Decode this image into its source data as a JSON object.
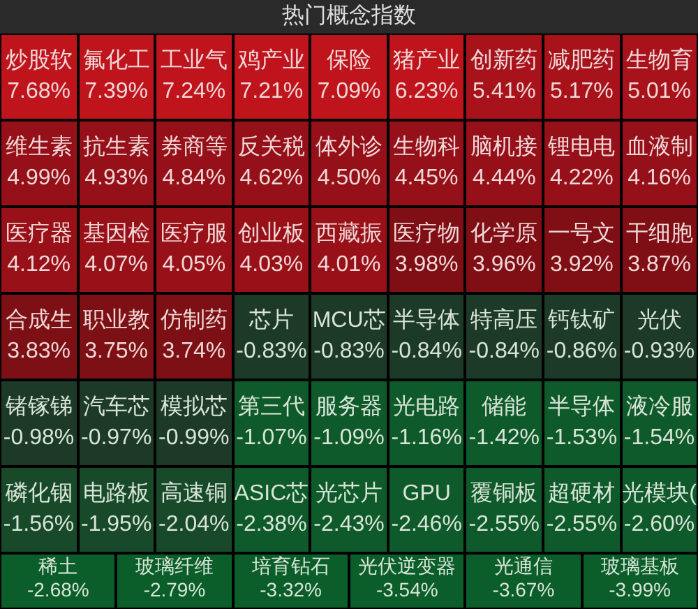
{
  "chart_data": {
    "type": "other",
    "title": "热门概念指数",
    "categories": [
      "炒股软",
      "氟化工",
      "工业气",
      "鸡产业",
      "保险",
      "猪产业",
      "创新药",
      "减肥药",
      "生物育",
      "维生素",
      "抗生素",
      "券商等",
      "反关税",
      "体外诊",
      "生物科",
      "脑机接",
      "锂电电",
      "血液制",
      "医疗器",
      "基因检",
      "医疗服",
      "创业板",
      "西藏振",
      "医疗物",
      "化学原",
      "一号文",
      "干细胞",
      "合成生",
      "职业教",
      "仿制药",
      "芯片",
      "MCU芯",
      "半导体",
      "特高压",
      "钙钛矿",
      "光伏",
      "锗镓锑",
      "汽车芯",
      "模拟芯",
      "第三代",
      "服务器",
      "光电路",
      "储能",
      "半导体",
      "液冷服",
      "磷化铟",
      "电路板",
      "高速铜",
      "ASIC芯",
      "光芯片",
      "GPU",
      "覆铜板",
      "超硬材",
      "光模块(",
      "稀土",
      "玻璃纤维",
      "培育钻石",
      "光伏逆变器",
      "光通信",
      "玻璃基板"
    ],
    "values": [
      7.68,
      7.39,
      7.24,
      7.21,
      7.09,
      6.23,
      5.41,
      5.17,
      5.01,
      4.99,
      4.93,
      4.84,
      4.62,
      4.5,
      4.45,
      4.44,
      4.22,
      4.16,
      4.12,
      4.07,
      4.05,
      4.03,
      4.01,
      3.98,
      3.96,
      3.92,
      3.87,
      3.83,
      3.75,
      3.74,
      -0.83,
      -0.83,
      -0.84,
      -0.84,
      -0.86,
      -0.93,
      -0.98,
      -0.97,
      -0.99,
      -1.07,
      -1.09,
      -1.16,
      -1.42,
      -1.53,
      -1.54,
      -1.56,
      -1.95,
      -2.04,
      -2.38,
      -2.43,
      -2.46,
      -2.55,
      -2.55,
      -2.6,
      -2.68,
      -2.79,
      -3.32,
      -3.54,
      -3.67,
      -3.99
    ],
    "value_labels": [
      "7.68%",
      "7.39%",
      "7.24%",
      "7.21%",
      "7.09%",
      "6.23%",
      "5.41%",
      "5.17%",
      "5.01%",
      "4.99%",
      "4.93%",
      "4.84%",
      "4.62%",
      "4.50%",
      "4.45%",
      "4.44%",
      "4.22%",
      "4.16%",
      "4.12%",
      "4.07%",
      "4.05%",
      "4.03%",
      "4.01%",
      "3.98%",
      "3.96%",
      "3.92%",
      "3.87%",
      "3.83%",
      "3.75%",
      "3.74%",
      "-0.83%",
      "-0.83%",
      "-0.84%",
      "-0.84%",
      "-0.86%",
      "-0.93%",
      "-0.98%",
      "-0.97%",
      "-0.99%",
      "-1.07%",
      "-1.09%",
      "-1.16%",
      "-1.42%",
      "-1.53%",
      "-1.54%",
      "-1.56%",
      "-1.95%",
      "-2.04%",
      "-2.38%",
      "-2.43%",
      "-2.46%",
      "-2.55%",
      "-2.55%",
      "-2.60%",
      "-2.68%",
      "-2.79%",
      "-3.32%",
      "-3.54%",
      "-3.67%",
      "-3.99%"
    ],
    "colors": [
      "#c0141c",
      "#c0141c",
      "#c0141c",
      "#c0141c",
      "#c0141c",
      "#c0141c",
      "#a8121a",
      "#a8121a",
      "#a8121a",
      "#951018",
      "#951018",
      "#951018",
      "#951018",
      "#951018",
      "#951018",
      "#951018",
      "#951018",
      "#951018",
      "#981018",
      "#981018",
      "#981018",
      "#981018",
      "#981018",
      "#7f0f15",
      "#7f0f15",
      "#7f0f15",
      "#7f0f15",
      "#7c1015",
      "#7c1015",
      "#7c1015",
      "#1d3a28",
      "#1d3a28",
      "#1d3a28",
      "#1d3a28",
      "#1d3a28",
      "#1d3a28",
      "#1d3a28",
      "#1d3a28",
      "#1d3a28",
      "#0f5a2a",
      "#0f5a2a",
      "#0f5a2a",
      "#0f5a2a",
      "#0f5a2a",
      "#0f5a2a",
      "#184a2a",
      "#184a2a",
      "#184a2a",
      "#0f5a2a",
      "#0f5a2a",
      "#0f5a2a",
      "#0f5a2a",
      "#0f5a2a",
      "#0f5a2a",
      "#0b5e2a",
      "#0b5e2a",
      "#0b5e2a",
      "#0b5e2a",
      "#0b5e2a",
      "#0b5e2a"
    ]
  }
}
